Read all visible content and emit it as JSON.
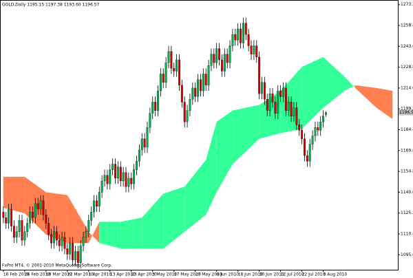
{
  "chart_data": {
    "type": "candlestick",
    "title": "GOLD,Daily 1195.15 1197.38 1193.60 1196.57",
    "footer": "FxPro MT4, © 2001-2010 MetaQuotes Software Corp.",
    "up_color": "#00b050",
    "down_color": "#d40000",
    "wick_color": "#000000",
    "open": [
      1126,
      1122,
      1118,
      1128,
      1116,
      1108,
      1112,
      1120,
      1106,
      1112,
      1118,
      1126,
      1122,
      1132,
      1128,
      1134,
      1124,
      1118,
      1110,
      1104,
      1112,
      1106,
      1102,
      1108,
      1100,
      1096,
      1104,
      1092,
      1098,
      1090,
      1102,
      1108,
      1112,
      1120,
      1126,
      1134,
      1130,
      1140,
      1148,
      1152,
      1146,
      1156,
      1160,
      1150,
      1158,
      1148,
      1154,
      1144,
      1150,
      1146,
      1156,
      1162,
      1170,
      1178,
      1172,
      1186,
      1196,
      1204,
      1198,
      1212,
      1224,
      1218,
      1232,
      1240,
      1228,
      1226,
      1234,
      1216,
      1204,
      1190,
      1198,
      1206,
      1214,
      1208,
      1220,
      1212,
      1224,
      1216,
      1230,
      1238,
      1232,
      1242,
      1234,
      1226,
      1238,
      1232,
      1244,
      1252,
      1248,
      1256,
      1246,
      1260,
      1252,
      1244,
      1238,
      1244,
      1236,
      1210,
      1218,
      1206,
      1198,
      1210,
      1204,
      1196,
      1212,
      1208,
      1214,
      1198,
      1204,
      1194,
      1200,
      1188,
      1184,
      1178,
      1166,
      1162,
      1174,
      1180,
      1186,
      1184,
      1190,
      1195.15
    ],
    "high": [
      1130,
      1126,
      1132,
      1132,
      1120,
      1116,
      1124,
      1124,
      1116,
      1122,
      1130,
      1130,
      1136,
      1136,
      1138,
      1138,
      1128,
      1122,
      1114,
      1116,
      1116,
      1110,
      1112,
      1112,
      1104,
      1108,
      1108,
      1102,
      1102,
      1106,
      1112,
      1116,
      1124,
      1130,
      1138,
      1138,
      1144,
      1152,
      1156,
      1156,
      1160,
      1164,
      1164,
      1162,
      1162,
      1158,
      1158,
      1154,
      1154,
      1160,
      1166,
      1174,
      1182,
      1182,
      1190,
      1200,
      1208,
      1208,
      1216,
      1228,
      1228,
      1236,
      1244,
      1244,
      1232,
      1238,
      1238,
      1220,
      1208,
      1202,
      1210,
      1218,
      1218,
      1224,
      1224,
      1228,
      1228,
      1234,
      1242,
      1242,
      1246,
      1246,
      1238,
      1242,
      1242,
      1248,
      1256,
      1256,
      1260,
      1260,
      1264,
      1264,
      1256,
      1248,
      1248,
      1248,
      1240,
      1222,
      1222,
      1210,
      1214,
      1214,
      1208,
      1216,
      1216,
      1218,
      1218,
      1208,
      1208,
      1204,
      1204,
      1192,
      1188,
      1182,
      1170,
      1178,
      1184,
      1190,
      1190,
      1194,
      1198,
      1197.38
    ],
    "low": [
      1118,
      1114,
      1114,
      1112,
      1104,
      1104,
      1108,
      1102,
      1102,
      1108,
      1114,
      1118,
      1118,
      1124,
      1124,
      1120,
      1114,
      1106,
      1100,
      1100,
      1102,
      1098,
      1098,
      1096,
      1092,
      1092,
      1088,
      1088,
      1086,
      1086,
      1098,
      1104,
      1108,
      1116,
      1122,
      1126,
      1126,
      1136,
      1144,
      1142,
      1142,
      1152,
      1146,
      1146,
      1144,
      1144,
      1140,
      1140,
      1142,
      1142,
      1152,
      1158,
      1166,
      1168,
      1168,
      1182,
      1192,
      1194,
      1194,
      1208,
      1214,
      1214,
      1228,
      1224,
      1222,
      1222,
      1212,
      1200,
      1186,
      1186,
      1194,
      1202,
      1204,
      1204,
      1208,
      1208,
      1212,
      1212,
      1226,
      1228,
      1228,
      1230,
      1222,
      1222,
      1228,
      1228,
      1240,
      1244,
      1244,
      1242,
      1242,
      1248,
      1240,
      1234,
      1234,
      1232,
      1206,
      1206,
      1202,
      1194,
      1194,
      1200,
      1192,
      1192,
      1204,
      1204,
      1194,
      1194,
      1190,
      1190,
      1184,
      1180,
      1174,
      1162,
      1158,
      1158,
      1170,
      1176,
      1180,
      1180,
      1186,
      1193.6
    ],
    "close": [
      1122,
      1118,
      1128,
      1116,
      1108,
      1112,
      1120,
      1106,
      1112,
      1118,
      1126,
      1122,
      1132,
      1128,
      1134,
      1124,
      1118,
      1110,
      1104,
      1112,
      1106,
      1102,
      1108,
      1100,
      1096,
      1104,
      1092,
      1098,
      1090,
      1102,
      1108,
      1112,
      1120,
      1126,
      1134,
      1130,
      1140,
      1148,
      1152,
      1146,
      1156,
      1160,
      1150,
      1158,
      1148,
      1154,
      1144,
      1150,
      1146,
      1156,
      1162,
      1170,
      1178,
      1172,
      1186,
      1196,
      1204,
      1198,
      1212,
      1224,
      1218,
      1232,
      1240,
      1228,
      1226,
      1234,
      1216,
      1204,
      1190,
      1198,
      1206,
      1214,
      1208,
      1220,
      1212,
      1224,
      1216,
      1230,
      1238,
      1232,
      1242,
      1234,
      1226,
      1238,
      1232,
      1244,
      1252,
      1248,
      1256,
      1246,
      1260,
      1252,
      1244,
      1238,
      1244,
      1236,
      1210,
      1218,
      1206,
      1198,
      1210,
      1204,
      1196,
      1212,
      1208,
      1214,
      1198,
      1204,
      1194,
      1200,
      1188,
      1184,
      1178,
      1166,
      1162,
      1174,
      1180,
      1186,
      1184,
      1190,
      1194,
      1196.57
    ],
    "last_label": "1196.57",
    "cloud": {
      "x": [
        0,
        8,
        16,
        24,
        32,
        36,
        44,
        52,
        60,
        68,
        76,
        80,
        86,
        96,
        104,
        112,
        120,
        128,
        132,
        140,
        146
      ],
      "span_a": [
        1129,
        1125,
        1110,
        1104,
        1104,
        1119,
        1119,
        1122,
        1139,
        1144,
        1163,
        1190,
        1198,
        1202,
        1212,
        1229,
        1236,
        1222,
        1214,
        1200,
        1192
      ],
      "span_b": [
        1151,
        1151,
        1140,
        1138,
        1112,
        1104,
        1100,
        1100,
        1100,
        1112,
        1124,
        1140,
        1160,
        1178,
        1182,
        1185,
        1200,
        1212,
        1216,
        1214,
        1212
      ],
      "bull_color": "#33ff99",
      "bear_color": "#ff7f50"
    },
    "xlim": [
      -1,
      148
    ],
    "xticks": [
      {
        "value": 0,
        "label": "16 Feb 2010"
      },
      {
        "value": 8,
        "label": "26 Feb 2010"
      },
      {
        "value": 16,
        "label": "10 Mar 2010"
      },
      {
        "value": 24,
        "label": "22 Mar 2010"
      },
      {
        "value": 32,
        "label": "1 Apr 2010"
      },
      {
        "value": 40,
        "label": "13 Apr 2010"
      },
      {
        "value": 48,
        "label": "23 Apr 2010"
      },
      {
        "value": 56,
        "label": "5 May 2010"
      },
      {
        "value": 64,
        "label": "17 May 2010"
      },
      {
        "value": 72,
        "label": "27 May 2010"
      },
      {
        "value": 80,
        "label": "8 Jun 2010"
      },
      {
        "value": 88,
        "label": "18 Jun 2010"
      },
      {
        "value": 96,
        "label": "30 Jun 2010"
      },
      {
        "value": 104,
        "label": "12 Jul 2010"
      },
      {
        "value": 112,
        "label": "22 Jul 2010"
      },
      {
        "value": 120,
        "label": "3 Aug 2010"
      }
    ],
    "ylim": [
      1085,
      1276
    ],
    "yticks": [
      {
        "value": 1273.2,
        "label": "1273.20"
      },
      {
        "value": 1258.4,
        "label": "1258.40"
      },
      {
        "value": 1243.6,
        "label": "1243.60"
      },
      {
        "value": 1228.8,
        "label": "1228.80"
      },
      {
        "value": 1214,
        "label": "1214.00"
      },
      {
        "value": 1199.2,
        "label": "1199.20"
      },
      {
        "value": 1184.4,
        "label": "1184.40"
      },
      {
        "value": 1169.6,
        "label": "1169.60"
      },
      {
        "value": 1154.8,
        "label": "1154.80"
      },
      {
        "value": 1140,
        "label": "1140.00"
      },
      {
        "value": 1125.2,
        "label": "1125.20"
      },
      {
        "value": 1110.4,
        "label": "1110.40"
      },
      {
        "value": 1095.6,
        "label": "1095.60"
      }
    ]
  }
}
